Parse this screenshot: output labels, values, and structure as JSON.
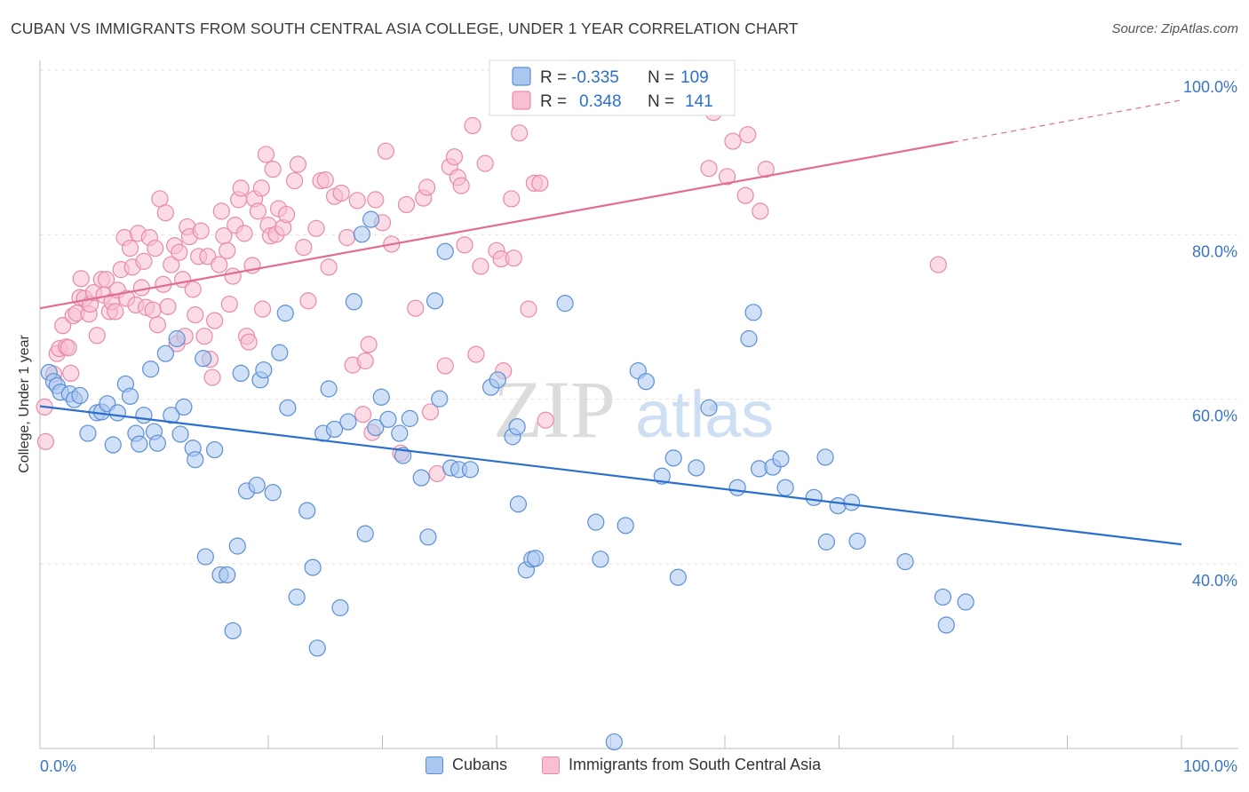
{
  "header": {
    "title": "CUBAN VS IMMIGRANTS FROM SOUTH CENTRAL ASIA COLLEGE, UNDER 1 YEAR CORRELATION CHART",
    "source": "Source: ZipAtlas.com"
  },
  "watermark": {
    "zip": "ZIP",
    "atlas": "atlas"
  },
  "legend": {
    "r_label": "R =",
    "n_label": "N =",
    "rows": [
      {
        "r": "-0.335",
        "n": "109"
      },
      {
        "r": "0.348",
        "n": "141"
      }
    ]
  },
  "bottom_legend": {
    "items": [
      "Cubans",
      "Immigrants from South Central Asia"
    ]
  },
  "colors": {
    "cuban_fill": "#a9c7ef",
    "cuban_stroke": "#5b8fd6",
    "cuban_line": "#2b6fce",
    "asia_fill": "#f7bfd0",
    "asia_stroke": "#e98aa8",
    "asia_line": "#e16d96",
    "tick_text": "#3a75c4",
    "grid": "#e2e2e2"
  },
  "chart_data": {
    "type": "scatter",
    "title": "CUBAN VS IMMIGRANTS FROM SOUTH CENTRAL ASIA COLLEGE, UNDER 1 YEAR CORRELATION CHART",
    "xlabel": "",
    "ylabel": "College, Under 1 year",
    "xlim": [
      0,
      100
    ],
    "ylim": [
      20,
      100
    ],
    "x_tick_labels": [
      "0.0%",
      "100.0%"
    ],
    "y_ticks": [
      40,
      60,
      80,
      100
    ],
    "y_tick_labels": [
      "40.0%",
      "60.0%",
      "80.0%",
      "100.0%"
    ],
    "grid": true,
    "legend_position": "top-center",
    "series": [
      {
        "name": "Cubans",
        "r": -0.335,
        "n": 109,
        "trend": {
          "x": [
            0,
            100
          ],
          "y": [
            61.1,
            44.3
          ]
        },
        "points": [
          [
            0.8,
            65.2
          ],
          [
            1.2,
            64.1
          ],
          [
            1.5,
            63.6
          ],
          [
            1.8,
            62.8
          ],
          [
            2.6,
            62.6
          ],
          [
            3.0,
            61.9
          ],
          [
            3.5,
            62.4
          ],
          [
            4.2,
            57.8
          ],
          [
            5.0,
            60.3
          ],
          [
            5.4,
            60.4
          ],
          [
            5.9,
            61.4
          ],
          [
            6.4,
            56.4
          ],
          [
            6.8,
            60.3
          ],
          [
            7.5,
            63.8
          ],
          [
            7.9,
            62.3
          ],
          [
            8.4,
            57.8
          ],
          [
            8.7,
            56.5
          ],
          [
            9.1,
            60.0
          ],
          [
            9.7,
            65.6
          ],
          [
            10.0,
            58.0
          ],
          [
            10.3,
            56.6
          ],
          [
            11.0,
            67.5
          ],
          [
            11.5,
            60.0
          ],
          [
            12.0,
            69.3
          ],
          [
            12.6,
            61.0
          ],
          [
            12.3,
            57.7
          ],
          [
            13.4,
            56.0
          ],
          [
            13.6,
            54.6
          ],
          [
            14.3,
            66.9
          ],
          [
            15.3,
            55.8
          ],
          [
            14.5,
            42.8
          ],
          [
            15.8,
            40.6
          ],
          [
            16.4,
            40.6
          ],
          [
            16.9,
            33.8
          ],
          [
            17.3,
            44.1
          ],
          [
            17.6,
            65.1
          ],
          [
            18.1,
            50.8
          ],
          [
            19.0,
            51.5
          ],
          [
            19.3,
            64.3
          ],
          [
            19.6,
            65.5
          ],
          [
            20.4,
            50.6
          ],
          [
            21.0,
            67.6
          ],
          [
            21.5,
            72.4
          ],
          [
            21.7,
            60.9
          ],
          [
            22.5,
            37.9
          ],
          [
            23.4,
            48.4
          ],
          [
            23.9,
            41.5
          ],
          [
            24.3,
            31.7
          ],
          [
            24.8,
            57.8
          ],
          [
            25.3,
            63.2
          ],
          [
            25.8,
            58.3
          ],
          [
            26.3,
            36.6
          ],
          [
            27.0,
            59.2
          ],
          [
            27.5,
            73.8
          ],
          [
            28.2,
            82.0
          ],
          [
            28.5,
            45.6
          ],
          [
            29.0,
            83.8
          ],
          [
            29.4,
            58.5
          ],
          [
            29.9,
            62.2
          ],
          [
            30.5,
            59.5
          ],
          [
            31.5,
            57.8
          ],
          [
            31.8,
            55.1
          ],
          [
            32.4,
            59.6
          ],
          [
            33.4,
            52.4
          ],
          [
            34.0,
            45.2
          ],
          [
            34.6,
            73.9
          ],
          [
            35.0,
            62.0
          ],
          [
            35.5,
            79.9
          ],
          [
            36.0,
            53.6
          ],
          [
            36.7,
            53.4
          ],
          [
            37.7,
            53.4
          ],
          [
            39.5,
            63.4
          ],
          [
            40.1,
            64.3
          ],
          [
            41.4,
            57.4
          ],
          [
            41.8,
            58.6
          ],
          [
            41.9,
            49.2
          ],
          [
            42.6,
            41.2
          ],
          [
            43.1,
            42.5
          ],
          [
            43.4,
            42.6
          ],
          [
            46.0,
            73.6
          ],
          [
            48.7,
            47.0
          ],
          [
            49.1,
            42.5
          ],
          [
            51.3,
            46.6
          ],
          [
            52.4,
            65.4
          ],
          [
            53.1,
            64.1
          ],
          [
            54.5,
            52.6
          ],
          [
            55.5,
            54.8
          ],
          [
            55.9,
            40.3
          ],
          [
            57.5,
            53.6
          ],
          [
            58.6,
            60.9
          ],
          [
            61.1,
            51.2
          ],
          [
            62.1,
            69.3
          ],
          [
            62.5,
            72.5
          ],
          [
            63.0,
            53.5
          ],
          [
            64.2,
            53.7
          ],
          [
            64.9,
            54.7
          ],
          [
            65.3,
            51.2
          ],
          [
            67.8,
            50.0
          ],
          [
            68.8,
            54.9
          ],
          [
            68.9,
            44.6
          ],
          [
            69.9,
            49.0
          ],
          [
            71.1,
            49.4
          ],
          [
            71.6,
            44.7
          ],
          [
            75.8,
            42.2
          ],
          [
            79.1,
            37.9
          ],
          [
            79.4,
            34.5
          ],
          [
            81.1,
            37.3
          ],
          [
            50.3,
            20.3
          ]
        ]
      },
      {
        "name": "Immigrants from South Central Asia",
        "r": 0.348,
        "n": 141,
        "trend": {
          "x": [
            0,
            80
          ],
          "y": [
            73.0,
            93.2
          ]
        },
        "trend_dashed": {
          "x": [
            80,
            100
          ],
          "y": [
            93.2,
            98.3
          ]
        },
        "points": [
          [
            0.4,
            61.0
          ],
          [
            0.5,
            56.8
          ],
          [
            1.2,
            65.0
          ],
          [
            1.5,
            67.5
          ],
          [
            1.7,
            68.1
          ],
          [
            2.0,
            70.9
          ],
          [
            2.3,
            68.3
          ],
          [
            2.5,
            68.2
          ],
          [
            2.9,
            72.1
          ],
          [
            2.7,
            65.1
          ],
          [
            3.2,
            72.4
          ],
          [
            3.5,
            74.3
          ],
          [
            3.6,
            76.6
          ],
          [
            3.9,
            74.2
          ],
          [
            4.3,
            72.3
          ],
          [
            4.4,
            73.5
          ],
          [
            4.7,
            74.9
          ],
          [
            5.0,
            69.7
          ],
          [
            5.4,
            76.5
          ],
          [
            5.6,
            74.6
          ],
          [
            5.8,
            76.5
          ],
          [
            6.1,
            72.6
          ],
          [
            6.3,
            73.8
          ],
          [
            6.6,
            72.6
          ],
          [
            6.8,
            75.2
          ],
          [
            7.1,
            77.7
          ],
          [
            7.4,
            81.6
          ],
          [
            7.6,
            74.2
          ],
          [
            7.9,
            80.3
          ],
          [
            8.1,
            78.0
          ],
          [
            8.4,
            73.4
          ],
          [
            8.6,
            82.1
          ],
          [
            8.9,
            75.5
          ],
          [
            9.1,
            78.7
          ],
          [
            9.3,
            73.1
          ],
          [
            9.6,
            81.6
          ],
          [
            9.9,
            72.8
          ],
          [
            10.1,
            80.3
          ],
          [
            10.3,
            71.0
          ],
          [
            10.5,
            86.3
          ],
          [
            10.8,
            75.9
          ],
          [
            11.0,
            84.6
          ],
          [
            11.2,
            73.2
          ],
          [
            11.5,
            78.3
          ],
          [
            11.8,
            80.6
          ],
          [
            12.0,
            68.7
          ],
          [
            12.2,
            79.8
          ],
          [
            12.5,
            76.5
          ],
          [
            12.7,
            69.6
          ],
          [
            12.9,
            82.9
          ],
          [
            13.1,
            81.7
          ],
          [
            13.4,
            75.3
          ],
          [
            13.6,
            72.2
          ],
          [
            13.9,
            79.3
          ],
          [
            14.1,
            82.4
          ],
          [
            14.4,
            69.6
          ],
          [
            14.7,
            79.3
          ],
          [
            14.9,
            66.8
          ],
          [
            15.1,
            64.6
          ],
          [
            15.3,
            71.5
          ],
          [
            15.7,
            78.3
          ],
          [
            15.9,
            84.8
          ],
          [
            16.1,
            81.8
          ],
          [
            16.4,
            80.0
          ],
          [
            16.6,
            73.5
          ],
          [
            16.9,
            76.9
          ],
          [
            17.1,
            83.1
          ],
          [
            17.4,
            86.2
          ],
          [
            17.6,
            87.6
          ],
          [
            17.9,
            82.1
          ],
          [
            18.1,
            69.6
          ],
          [
            18.3,
            68.9
          ],
          [
            18.6,
            78.2
          ],
          [
            18.8,
            86.3
          ],
          [
            19.1,
            84.8
          ],
          [
            19.4,
            87.6
          ],
          [
            19.5,
            72.9
          ],
          [
            19.8,
            91.7
          ],
          [
            20.0,
            83.1
          ],
          [
            20.2,
            81.8
          ],
          [
            20.4,
            89.9
          ],
          [
            20.7,
            82.0
          ],
          [
            20.9,
            85.1
          ],
          [
            21.3,
            82.8
          ],
          [
            21.6,
            84.4
          ],
          [
            22.3,
            88.5
          ],
          [
            22.6,
            90.5
          ],
          [
            23.1,
            80.4
          ],
          [
            23.5,
            73.9
          ],
          [
            24.2,
            82.7
          ],
          [
            24.6,
            88.5
          ],
          [
            25.0,
            88.6
          ],
          [
            25.3,
            78.0
          ],
          [
            25.8,
            86.6
          ],
          [
            26.4,
            87.0
          ],
          [
            26.9,
            81.6
          ],
          [
            27.4,
            66.1
          ],
          [
            27.8,
            86.1
          ],
          [
            28.3,
            60.1
          ],
          [
            28.5,
            66.6
          ],
          [
            28.8,
            68.6
          ],
          [
            29.1,
            57.9
          ],
          [
            29.4,
            86.2
          ],
          [
            30.0,
            83.4
          ],
          [
            30.3,
            92.1
          ],
          [
            30.8,
            80.8
          ],
          [
            31.6,
            55.4
          ],
          [
            32.1,
            85.6
          ],
          [
            32.9,
            73.0
          ],
          [
            33.6,
            86.4
          ],
          [
            33.9,
            87.7
          ],
          [
            34.2,
            60.4
          ],
          [
            34.8,
            52.9
          ],
          [
            35.5,
            66.0
          ],
          [
            35.9,
            90.2
          ],
          [
            36.3,
            91.4
          ],
          [
            36.6,
            88.9
          ],
          [
            36.9,
            87.9
          ],
          [
            37.2,
            80.7
          ],
          [
            37.9,
            95.2
          ],
          [
            38.2,
            67.4
          ],
          [
            38.6,
            78.1
          ],
          [
            39.0,
            90.6
          ],
          [
            40.0,
            80.0
          ],
          [
            40.6,
            65.4
          ],
          [
            40.4,
            79.0
          ],
          [
            41.3,
            86.3
          ],
          [
            41.5,
            79.1
          ],
          [
            42.0,
            94.3
          ],
          [
            42.8,
            72.9
          ],
          [
            43.3,
            88.2
          ],
          [
            43.8,
            88.2
          ],
          [
            44.3,
            59.4
          ],
          [
            63.6,
            89.9
          ],
          [
            58.6,
            90.0
          ],
          [
            60.2,
            89.0
          ],
          [
            61.8,
            86.7
          ],
          [
            63.1,
            84.8
          ],
          [
            59.0,
            96.8
          ],
          [
            60.7,
            93.3
          ],
          [
            62.0,
            94.1
          ],
          [
            78.7,
            78.3
          ]
        ]
      }
    ]
  }
}
